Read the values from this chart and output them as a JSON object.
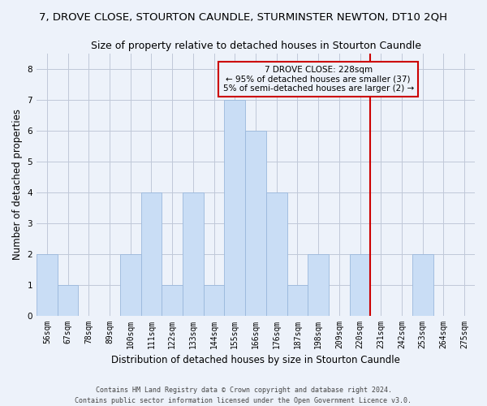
{
  "title": "7, DROVE CLOSE, STOURTON CAUNDLE, STURMINSTER NEWTON, DT10 2QH",
  "subtitle": "Size of property relative to detached houses in Stourton Caundle",
  "xlabel": "Distribution of detached houses by size in Stourton Caundle",
  "ylabel": "Number of detached properties",
  "footer_line1": "Contains HM Land Registry data © Crown copyright and database right 2024.",
  "footer_line2": "Contains public sector information licensed under the Open Government Licence v3.0.",
  "categories": [
    "56sqm",
    "67sqm",
    "78sqm",
    "89sqm",
    "100sqm",
    "111sqm",
    "122sqm",
    "133sqm",
    "144sqm",
    "155sqm",
    "166sqm",
    "176sqm",
    "187sqm",
    "198sqm",
    "209sqm",
    "220sqm",
    "231sqm",
    "242sqm",
    "253sqm",
    "264sqm",
    "275sqm"
  ],
  "bar_values": [
    2,
    1,
    0,
    0,
    2,
    4,
    1,
    4,
    1,
    7,
    6,
    4,
    1,
    2,
    0,
    2,
    0,
    0,
    2,
    0,
    0
  ],
  "bar_color": "#c9ddf5",
  "bar_edge_color": "#9ab8dc",
  "annotation_box_text": "7 DROVE CLOSE: 228sqm\n← 95% of detached houses are smaller (37)\n5% of semi-detached houses are larger (2) →",
  "annotation_box_color": "#cc0000",
  "vline_x_index": 15.5,
  "vline_color": "#cc0000",
  "ylim": [
    0,
    8.5
  ],
  "yticks": [
    0,
    1,
    2,
    3,
    4,
    5,
    6,
    7,
    8
  ],
  "grid_color": "#c0c8d8",
  "background_color": "#edf2fa",
  "title_fontsize": 9.5,
  "subtitle_fontsize": 9,
  "axis_label_fontsize": 8.5,
  "tick_fontsize": 7,
  "annotation_fontsize": 7.5,
  "footer_fontsize": 6
}
